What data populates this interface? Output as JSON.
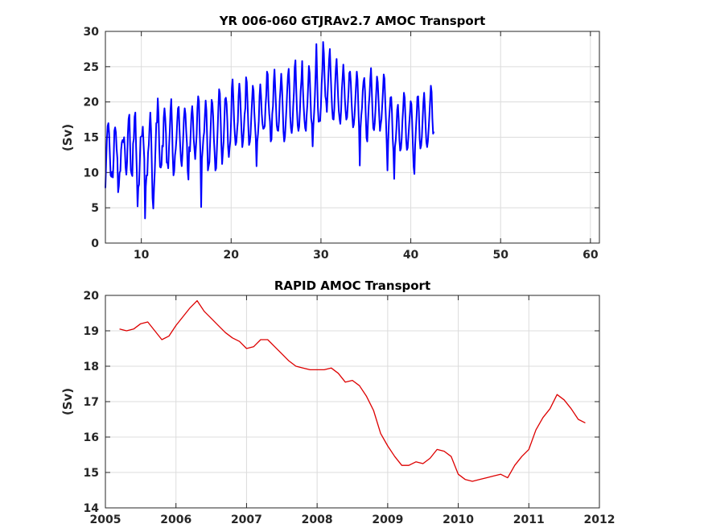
{
  "chart_data": [
    {
      "type": "line",
      "title": "YR 006-060 GTJRAv2.7 AMOC Transport",
      "xlabel": "",
      "ylabel": "(Sv)",
      "xlim": [
        6,
        61
      ],
      "ylim": [
        0,
        30
      ],
      "xticks": [
        10,
        20,
        30,
        40,
        50,
        60
      ],
      "yticks": [
        0,
        5,
        10,
        15,
        20,
        25,
        30
      ],
      "grid": true,
      "line_color": "#0000ff",
      "samples_per_year": 12,
      "series": [
        {
          "x_start": 6.0,
          "dx": 0.0833,
          "values": [
            7.8,
            11.5,
            14.7,
            16.6,
            17.0,
            15.5,
            12.5,
            9.6,
            9.4,
            10.1,
            9.3,
            11.9,
            15.9,
            16.4,
            15.7,
            13.4,
            12.0,
            7.2,
            8.1,
            10.0,
            10.2,
            13.2,
            14.3,
            14.6,
            14.3,
            15.0,
            13.3,
            10.7,
            9.7,
            11.5,
            15.4,
            17.6,
            18.2,
            14.0,
            10.3,
            9.8,
            9.5,
            14.1,
            14.8,
            17.9,
            18.5,
            13.7,
            10.2,
            5.2,
            7.9,
            8.3,
            11.6,
            15.0,
            15.1,
            15.2,
            16.5,
            14.1,
            11.9,
            3.5,
            8.0,
            9.6,
            9.6,
            12.8,
            13.9,
            16.5,
            18.5,
            16.1,
            11.4,
            6.4,
            4.9,
            7.8,
            10.2,
            13.5,
            17.0,
            17.1,
            20.5,
            18.2,
            13.6,
            10.8,
            10.7,
            11.1,
            13.8,
            13.7,
            17.8,
            19.1,
            17.7,
            15.5,
            11.4,
            11.4,
            10.6,
            13.5,
            15.8,
            18.8,
            20.4,
            16.8,
            12.4,
            9.6,
            10.2,
            12.4,
            13.3,
            14.8,
            17.2,
            19.1,
            19.3,
            16.2,
            13.8,
            11.8,
            10.9,
            12.6,
            15.0,
            17.8,
            19.1,
            18.3,
            15.9,
            14.1,
            10.2,
            9.0,
            13.6,
            13.0,
            15.6,
            18.2,
            19.4,
            17.8,
            14.8,
            13.4,
            11.9,
            13.6,
            15.4,
            19.1,
            20.8,
            20.1,
            15.9,
            12.7,
            5.1,
            11.9,
            13.3,
            14.9,
            15.7,
            18.1,
            20.2,
            18.8,
            14.8,
            10.3,
            10.9,
            11.5,
            14.4,
            17.2,
            20.3,
            19.8,
            18.0,
            14.8,
            12.8,
            10.3,
            10.6,
            13.2,
            16.0,
            19.2,
            21.8,
            21.2,
            17.7,
            13.9,
            11.2,
            12.9,
            14.4,
            17.4,
            20.4,
            20.6,
            19.7,
            17.2,
            13.6,
            12.2,
            13.5,
            14.5,
            17.3,
            21.9,
            23.2,
            20.6,
            17.4,
            15.4,
            13.9,
            14.3,
            15.9,
            17.2,
            20.8,
            22.6,
            21.2,
            18.4,
            15.7,
            13.6,
            14.5,
            16.1,
            18.2,
            19.1,
            23.5,
            22.8,
            19.9,
            16.6,
            13.9,
            14.3,
            15.4,
            17.8,
            20.1,
            22.3,
            21.6,
            18.6,
            16.7,
            14.8,
            10.9,
            14.4,
            15.5,
            17.3,
            20.8,
            22.5,
            20.9,
            18.3,
            16.9,
            16.2,
            16.3,
            16.6,
            19.4,
            21.0,
            24.3,
            23.9,
            20.2,
            18.3,
            17.2,
            14.4,
            14.7,
            18.3,
            19.4,
            22.8,
            24.6,
            22.0,
            19.5,
            16.7,
            16.0,
            15.9,
            17.3,
            20.2,
            21.9,
            24.0,
            22.2,
            19.2,
            15.8,
            14.4,
            15.1,
            17.0,
            19.1,
            21.6,
            23.7,
            24.7,
            22.2,
            18.0,
            16.3,
            15.6,
            16.7,
            19.4,
            21.4,
            24.9,
            25.9,
            22.1,
            18.9,
            16.7,
            15.9,
            16.5,
            18.7,
            21.6,
            23.1,
            25.8,
            21.9,
            19.4,
            17.5,
            16.3,
            15.9,
            18.1,
            19.7,
            22.4,
            25.1,
            24.1,
            20.9,
            17.7,
            16.9,
            13.7,
            16.7,
            18.5,
            20.9,
            24.1,
            28.2,
            23.5,
            19.2,
            17.2,
            17.3,
            17.3,
            19.3,
            22.5,
            24.5,
            28.5,
            26.9,
            23.3,
            20.8,
            20.2,
            18.6,
            21.1,
            23.6,
            26.1,
            27.5,
            24.4,
            21.5,
            19.1,
            17.6,
            17.5,
            19.1,
            22.4,
            24.7,
            26.1,
            23.6,
            20.8,
            18.7,
            17.6,
            16.9,
            18.7,
            21.7,
            23.4,
            25.3,
            23.4,
            20.5,
            18.8,
            17.5,
            17.8,
            19.6,
            21.5,
            24.1,
            24.3,
            22.8,
            20.0,
            18.0,
            16.4,
            16.8,
            18.1,
            20.2,
            22.4,
            24.3,
            23.1,
            19.6,
            16.3,
            11.0,
            16.3,
            18.1,
            19.2,
            21.6,
            22.9,
            23.4,
            21.5,
            18.0,
            14.9,
            14.4,
            17.3,
            19.5,
            20.9,
            23.2,
            24.8,
            21.7,
            18.6,
            16.3,
            16.0,
            17.0,
            19.0,
            21.4,
            23.6,
            22.8,
            20.4,
            18.0,
            15.9,
            16.8,
            17.6,
            19.5,
            21.6,
            23.9,
            23.3,
            20.2,
            17.4,
            14.1,
            10.3,
            14.4,
            17.3,
            18.9,
            20.6,
            20.7,
            18.5,
            14.9,
            12.9,
            9.1,
            13.6,
            14.5,
            16.3,
            18.9,
            19.6,
            17.5,
            14.6,
            13.1,
            13.4,
            14.8,
            17.3,
            19.1,
            21.3,
            20.6,
            17.8,
            14.6,
            13.2,
            13.5,
            15.1,
            16.8,
            18.3,
            20.1,
            19.7,
            17.1,
            13.8,
            10.8,
            9.8,
            13.9,
            16.1,
            18.1,
            20.7,
            20.8,
            18.6,
            14.8,
            13.4,
            13.8,
            15.1,
            17.5,
            19.9,
            21.3,
            19.3,
            16.5,
            14.3,
            13.6,
            14.4,
            16.1,
            18.0,
            20.2,
            22.3,
            21.4,
            17.7,
            15.5,
            15.8
          ]
        }
      ]
    },
    {
      "type": "line",
      "title": "RAPID AMOC Transport",
      "xlabel": "",
      "ylabel": "(Sv)",
      "xlim": [
        2005,
        2012
      ],
      "ylim": [
        14,
        20
      ],
      "xticks": [
        2005,
        2006,
        2007,
        2008,
        2009,
        2010,
        2011,
        2012
      ],
      "yticks": [
        14,
        15,
        16,
        17,
        18,
        19,
        20
      ],
      "grid": true,
      "line_color": "#dd0000",
      "series": [
        {
          "x": [
            2005.2,
            2005.3,
            2005.4,
            2005.5,
            2005.6,
            2005.7,
            2005.8,
            2005.9,
            2006.0,
            2006.1,
            2006.2,
            2006.3,
            2006.4,
            2006.5,
            2006.6,
            2006.7,
            2006.8,
            2006.9,
            2007.0,
            2007.1,
            2007.2,
            2007.3,
            2007.4,
            2007.5,
            2007.6,
            2007.7,
            2007.8,
            2007.9,
            2008.0,
            2008.1,
            2008.2,
            2008.3,
            2008.4,
            2008.5,
            2008.6,
            2008.7,
            2008.8,
            2008.9,
            2009.0,
            2009.1,
            2009.2,
            2009.3,
            2009.4,
            2009.5,
            2009.6,
            2009.7,
            2009.8,
            2009.9,
            2010.0,
            2010.1,
            2010.2,
            2010.3,
            2010.4,
            2010.5,
            2010.6,
            2010.7,
            2010.8,
            2010.9,
            2011.0,
            2011.1,
            2011.2,
            2011.3,
            2011.4,
            2011.5,
            2011.6,
            2011.7,
            2011.8
          ],
          "values": [
            19.05,
            19.0,
            19.05,
            19.2,
            19.25,
            19.0,
            18.75,
            18.85,
            19.15,
            19.4,
            19.65,
            19.85,
            19.55,
            19.35,
            19.15,
            18.95,
            18.8,
            18.7,
            18.5,
            18.55,
            18.75,
            18.75,
            18.55,
            18.35,
            18.15,
            18.0,
            17.95,
            17.9,
            17.9,
            17.9,
            17.95,
            17.8,
            17.55,
            17.6,
            17.45,
            17.15,
            16.75,
            16.1,
            15.75,
            15.45,
            15.2,
            15.2,
            15.3,
            15.25,
            15.4,
            15.65,
            15.6,
            15.45,
            14.95,
            14.8,
            14.75,
            14.8,
            14.85,
            14.9,
            14.95,
            14.85,
            15.2,
            15.45,
            15.65,
            16.2,
            16.55,
            16.8,
            17.2,
            17.05,
            16.8,
            16.5,
            16.4
          ]
        }
      ]
    }
  ]
}
